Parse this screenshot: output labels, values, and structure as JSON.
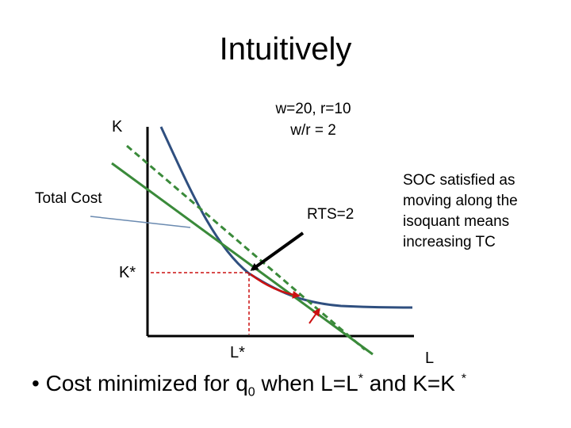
{
  "slide": {
    "title": "Intuitively",
    "params_line1": "w=20, r=10",
    "params_line2": "w/r = 2",
    "axis_y_label": "K",
    "axis_x_label": "L",
    "total_cost_label": "Total Cost",
    "rts_label": "RTS=2",
    "k_star_label": "K*",
    "l_star_label": "L*",
    "soc_note": "SOC satisfied as moving along the isoquant means increasing TC",
    "bullet": {
      "symbol": "•",
      "text_before": "Cost minimized for q",
      "q_subscript": "0",
      "text_mid": " when L=L",
      "star1": "*",
      "text_and": " and K=K ",
      "star2": "*"
    }
  },
  "colors": {
    "isoquant": "#2f4f7f",
    "cost_line": "#3a8a3a",
    "dashed_cost_line": "#3a8a3a",
    "pointer_arrow": "#000000",
    "movement_arrow": "#cc1111",
    "guide_dashed": "#cc1111",
    "total_cost_pointer": "#6a8ab0"
  }
}
